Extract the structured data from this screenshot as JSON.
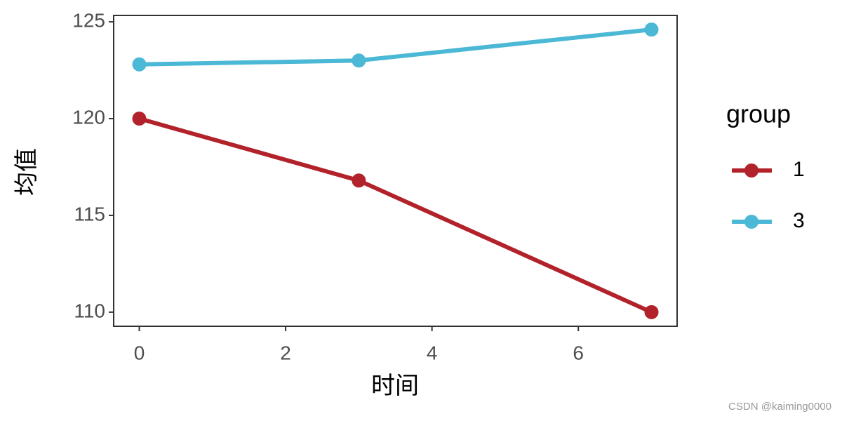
{
  "chart_data": {
    "type": "line",
    "x_label": "时间",
    "y_label": "均值",
    "xlim": [
      -0.35,
      7.35
    ],
    "xticks": [
      0,
      2,
      4,
      6
    ],
    "ylim": [
      109.27,
      125.33
    ],
    "yticks": [
      110,
      115,
      120,
      125
    ],
    "legend_title": "group",
    "legend": "right",
    "series": [
      {
        "name": "1",
        "color": "#b2222a",
        "x": [
          0,
          3,
          7
        ],
        "values": [
          120,
          116.8,
          110
        ]
      },
      {
        "name": "3",
        "color": "#4bb8d6",
        "x": [
          0,
          3,
          7
        ],
        "values": [
          122.8,
          123,
          124.6
        ]
      }
    ],
    "watermark": "CSDN @kaiming0000"
  }
}
